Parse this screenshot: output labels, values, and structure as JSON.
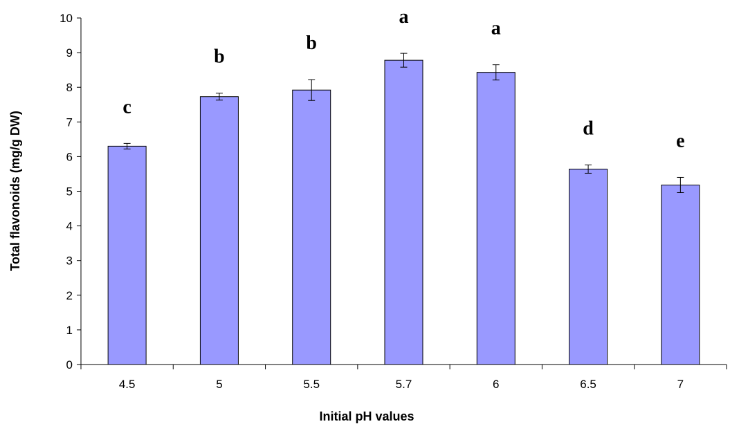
{
  "chart_data": {
    "type": "bar",
    "title": "",
    "xlabel": "Initial pH values",
    "ylabel": "Total flavonoids (mg/g DW)",
    "ylim": [
      0,
      10
    ],
    "yticks": [
      "0",
      "1",
      "2",
      "3",
      "4",
      "5",
      "6",
      "7",
      "8",
      "9",
      "10"
    ],
    "categories": [
      "4.5",
      "5",
      "5.5",
      "5.7",
      "6",
      "6.5",
      "7"
    ],
    "values": [
      6.3,
      7.73,
      7.92,
      8.78,
      8.43,
      5.64,
      5.18
    ],
    "errors": [
      0.08,
      0.1,
      0.3,
      0.2,
      0.22,
      0.12,
      0.22
    ],
    "significance_letters": [
      "c",
      "b",
      "b",
      "a",
      "a",
      "d",
      "e"
    ],
    "bar_color": "#9999ff",
    "grid": false,
    "legend": "none"
  }
}
